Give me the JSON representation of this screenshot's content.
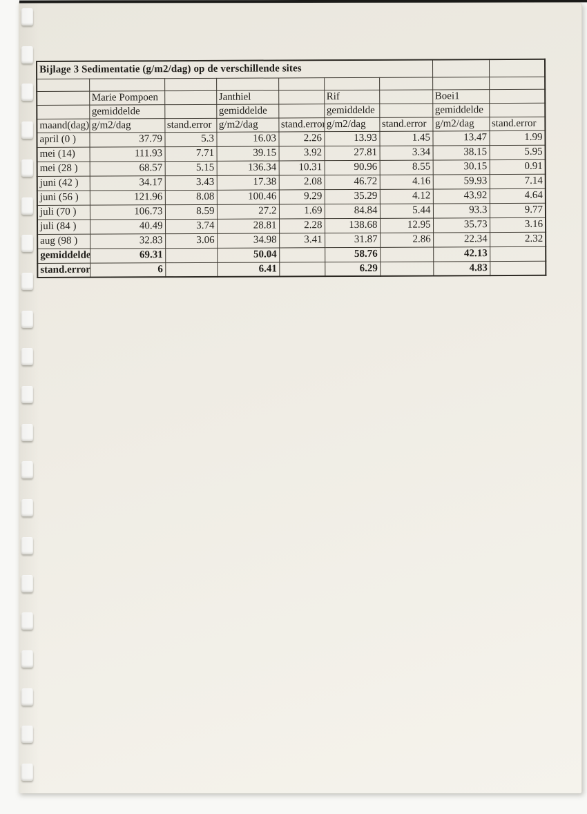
{
  "document": {
    "binding_holes_count": 21,
    "colors": {
      "paper": "#efece4",
      "paper_light": "#f5f3ec",
      "table_line": "#3b372f",
      "ink": "#211f1b"
    },
    "table": {
      "title": "Bijlage 3 Sedimentatie (g/m2/dag) op de verschillende sites",
      "sites": [
        "Marie Pompoen",
        "Janthiel",
        "Rif",
        "Boei1"
      ],
      "sub_header": "gemiddelde",
      "col_headers": [
        "maand(dag)",
        "g/m2/dag",
        "stand.error",
        "g/m2/dag",
        "stand.error",
        "g/m2/dag",
        "stand.error",
        "g/m2/dag",
        "stand.error"
      ],
      "data_rows": [
        {
          "maand": "april (0 )",
          "values": [
            "37.79",
            "5.3",
            "16.03",
            "2.26",
            "13.93",
            "1.45",
            "13.47",
            "1.99"
          ]
        },
        {
          "maand": "mei (14)",
          "values": [
            "111.93",
            "7.71",
            "39.15",
            "3.92",
            "27.81",
            "3.34",
            "38.15",
            "5.95"
          ]
        },
        {
          "maand": "mei (28 )",
          "values": [
            "68.57",
            "5.15",
            "136.34",
            "10.31",
            "90.96",
            "8.55",
            "30.15",
            "0.91"
          ]
        },
        {
          "maand": "juni (42 )",
          "values": [
            "34.17",
            "3.43",
            "17.38",
            "2.08",
            "46.72",
            "4.16",
            "59.93",
            "7.14"
          ]
        },
        {
          "maand": "juni (56 )",
          "values": [
            "121.96",
            "8.08",
            "100.46",
            "9.29",
            "35.29",
            "4.12",
            "43.92",
            "4.64"
          ]
        },
        {
          "maand": "juli (70 )",
          "values": [
            "106.73",
            "8.59",
            "27.2",
            "1.69",
            "84.84",
            "5.44",
            "93.3",
            "9.77"
          ]
        },
        {
          "maand": "juli (84 )",
          "values": [
            "40.49",
            "3.74",
            "28.81",
            "2.28",
            "138.68",
            "12.95",
            "35.73",
            "3.16"
          ]
        },
        {
          "maand": "aug (98 )",
          "values": [
            "32.83",
            "3.06",
            "34.98",
            "3.41",
            "31.87",
            "2.86",
            "22.34",
            "2.32"
          ]
        }
      ],
      "summary_rows": [
        {
          "label": "gemiddelde",
          "values": [
            "69.31",
            "_",
            "50.04",
            "_",
            "58.76",
            "_",
            "42.13",
            "_"
          ]
        },
        {
          "label": "stand.error",
          "values": [
            "6",
            "_",
            "6.41",
            "_",
            "6.29",
            "_",
            "4.83",
            "_"
          ]
        }
      ]
    }
  }
}
